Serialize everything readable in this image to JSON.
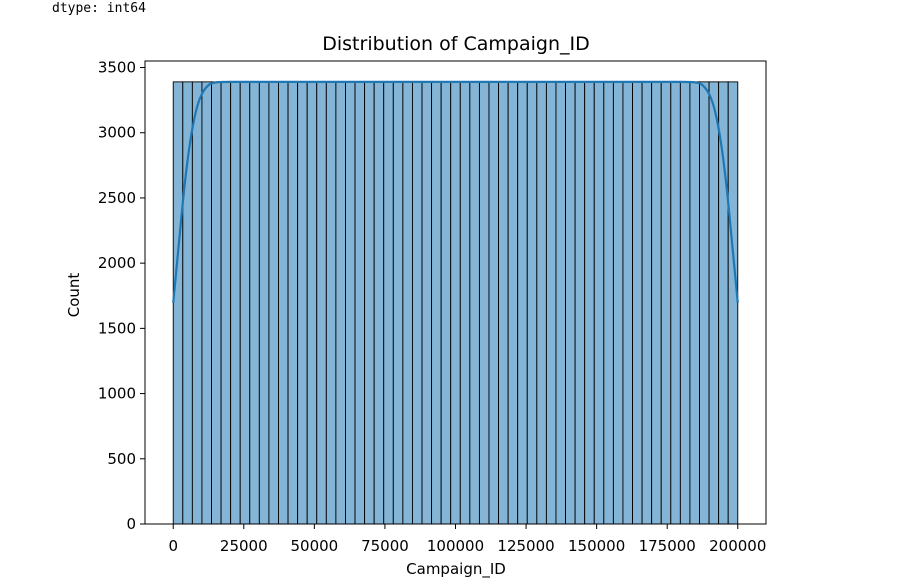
{
  "output": {
    "dtype_line": "dtype: int64"
  },
  "chart_data": {
    "type": "bar",
    "title": "Distribution of Campaign_ID",
    "xlabel": "Campaign_ID",
    "ylabel": "Count",
    "xlim": [
      -10000,
      210000
    ],
    "ylim": [
      0,
      3550
    ],
    "x_ticks": [
      0,
      25000,
      50000,
      75000,
      100000,
      125000,
      150000,
      175000,
      200000
    ],
    "x_tick_labels": [
      "0",
      "25000",
      "50000",
      "75000",
      "100000",
      "125000",
      "150000",
      "175000",
      "200000"
    ],
    "y_ticks": [
      0,
      500,
      1000,
      1500,
      2000,
      2500,
      3000,
      3500
    ],
    "y_tick_labels": [
      "0",
      "500",
      "1000",
      "1500",
      "2000",
      "2500",
      "3000",
      "3500"
    ],
    "bins": {
      "start": 1,
      "end": 200000,
      "count": 59
    },
    "values": [
      3390,
      3390,
      3390,
      3390,
      3390,
      3390,
      3390,
      3390,
      3390,
      3390,
      3390,
      3390,
      3390,
      3390,
      3390,
      3390,
      3390,
      3390,
      3390,
      3390,
      3390,
      3390,
      3390,
      3390,
      3390,
      3390,
      3390,
      3390,
      3390,
      3390,
      3390,
      3390,
      3390,
      3390,
      3390,
      3390,
      3390,
      3390,
      3390,
      3390,
      3390,
      3390,
      3390,
      3390,
      3390,
      3390,
      3390,
      3390,
      3390,
      3390,
      3390,
      3390,
      3390,
      3390,
      3390,
      3390,
      3390,
      3390,
      3390
    ],
    "kde": {
      "x": [
        1,
        2000,
        4000,
        6000,
        8000,
        10000,
        12500,
        15000,
        20000,
        50000,
        100000,
        150000,
        180000,
        185000,
        187500,
        190000,
        192000,
        194000,
        196000,
        198000,
        200000
      ],
      "y": [
        1695,
        2150,
        2590,
        2930,
        3160,
        3290,
        3365,
        3385,
        3390,
        3390,
        3390,
        3390,
        3390,
        3385,
        3365,
        3290,
        3160,
        2930,
        2590,
        2150,
        1695
      ]
    },
    "grid": false,
    "legend": "none",
    "colors": {
      "bar_fill": "#84b5d6",
      "bar_edge": "#000000",
      "kde_line": "#1f77b4"
    }
  }
}
